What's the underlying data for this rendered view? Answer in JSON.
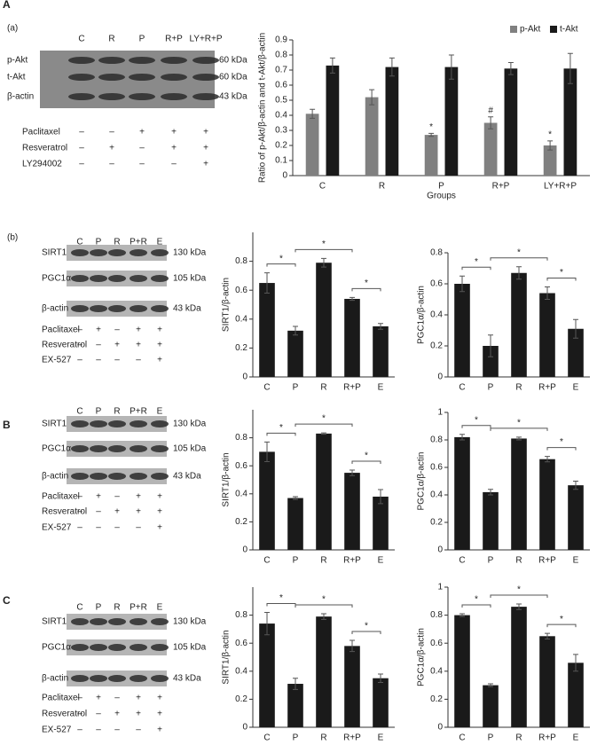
{
  "panel_labels": [
    "A",
    "(a)",
    "(b)",
    "B",
    "C"
  ],
  "blots": [
    {
      "lanes": [
        "C",
        "R",
        "P",
        "R+P",
        "LY+R+P"
      ],
      "rows": [
        {
          "label": "p-Akt",
          "kda": "60 kDa"
        },
        {
          "label": "t-Akt",
          "kda": "60 kDa"
        },
        {
          "label": "β-actin",
          "kda": "43 kDa"
        }
      ],
      "treatments": [
        {
          "name": "Paclitaxel",
          "signs": [
            "–",
            "–",
            "+",
            "+",
            "+"
          ]
        },
        {
          "name": "Resveratrol",
          "signs": [
            "–",
            "+",
            "–",
            "+",
            "+"
          ]
        },
        {
          "name": "LY294002",
          "signs": [
            "–",
            "–",
            "–",
            "–",
            "+"
          ]
        }
      ]
    },
    {
      "lanes": [
        "C",
        "P",
        "R",
        "P+R",
        "E"
      ],
      "rows": [
        {
          "label": "SIRT1",
          "kda": "130 kDa"
        },
        {
          "label": "PGC1α",
          "kda": "105 kDa"
        },
        {
          "label": "β-actin",
          "kda": "43 kDa"
        }
      ],
      "treatments": [
        {
          "name": "Paclitaxel",
          "signs": [
            "–",
            "+",
            "–",
            "+",
            "+"
          ]
        },
        {
          "name": "Resveratrol",
          "signs": [
            "–",
            "–",
            "+",
            "+",
            "+"
          ]
        },
        {
          "name": "EX-527",
          "signs": [
            "–",
            "–",
            "–",
            "–",
            "+"
          ]
        }
      ]
    },
    {
      "lanes": [
        "C",
        "P",
        "R",
        "P+R",
        "E"
      ],
      "rows": [
        {
          "label": "SIRT1",
          "kda": "130 kDa"
        },
        {
          "label": "PGC1α",
          "kda": "105 kDa"
        },
        {
          "label": "β-actin",
          "kda": "43 kDa"
        }
      ],
      "treatments": [
        {
          "name": "Paclitaxel",
          "signs": [
            "–",
            "+",
            "–",
            "+",
            "+"
          ]
        },
        {
          "name": "Resveratrol",
          "signs": [
            "–",
            "–",
            "+",
            "+",
            "+"
          ]
        },
        {
          "name": "EX-527",
          "signs": [
            "–",
            "–",
            "–",
            "–",
            "+"
          ]
        }
      ]
    },
    {
      "lanes": [
        "C",
        "P",
        "R",
        "P+R",
        "E"
      ],
      "rows": [
        {
          "label": "SIRT1",
          "kda": "130 kDa"
        },
        {
          "label": "PGC1α",
          "kda": "105 kDa"
        },
        {
          "label": "β-actin",
          "kda": "43 kDa"
        }
      ],
      "treatments": [
        {
          "name": "Paclitaxel",
          "signs": [
            "–",
            "+",
            "–",
            "+",
            "+"
          ]
        },
        {
          "name": "Resveratrol",
          "signs": [
            "–",
            "–",
            "+",
            "+",
            "+"
          ]
        },
        {
          "name": "EX-527",
          "signs": [
            "–",
            "–",
            "–",
            "–",
            "+"
          ]
        }
      ]
    }
  ],
  "chart_data": [
    {
      "type": "bar",
      "y_label": "Ratio of p-Akt/β-actin and t-Akt/β-actin",
      "x_label": "Groups",
      "categories": [
        "C",
        "R",
        "P",
        "R+P",
        "LY+R+P"
      ],
      "legend": "upper right",
      "series": [
        {
          "name": "p-Akt",
          "color": "#808080",
          "values": [
            0.41,
            0.52,
            0.27,
            0.35,
            0.2
          ],
          "errors": [
            0.03,
            0.05,
            0.01,
            0.04,
            0.03
          ],
          "markers": [
            null,
            null,
            "*",
            "#",
            "*"
          ]
        },
        {
          "name": "t-Akt",
          "color": "#1a1a1a",
          "values": [
            0.73,
            0.72,
            0.72,
            0.71,
            0.71
          ],
          "errors": [
            0.05,
            0.06,
            0.08,
            0.04,
            0.1
          ]
        }
      ],
      "ylim": [
        0,
        0.9
      ],
      "yticks": [
        0,
        0.1,
        0.2,
        0.3,
        0.4,
        0.5,
        0.6,
        0.7,
        0.8,
        0.9
      ]
    },
    {
      "type": "bar",
      "y_label": "SIRT1/β-actin",
      "categories": [
        "C",
        "P",
        "R",
        "R+P",
        "E"
      ],
      "color": "#1a1a1a",
      "values": [
        0.65,
        0.32,
        0.79,
        0.54,
        0.35
      ],
      "errors": [
        0.07,
        0.03,
        0.03,
        0.01,
        0.02
      ],
      "significance": [
        "*",
        "*",
        "*"
      ],
      "ylim": [
        0,
        1
      ],
      "yticks": [
        0,
        0.2,
        0.4,
        0.6,
        0.8
      ]
    },
    {
      "type": "bar",
      "y_label": "PGC1α/β-actin",
      "categories": [
        "C",
        "P",
        "R",
        "R+P",
        "E"
      ],
      "color": "#1a1a1a",
      "values": [
        0.6,
        0.2,
        0.67,
        0.54,
        0.31
      ],
      "errors": [
        0.05,
        0.07,
        0.04,
        0.04,
        0.06
      ],
      "significance": [
        "*",
        "*",
        "*"
      ],
      "ylim": [
        0,
        0.8
      ],
      "yticks": [
        0,
        0.2,
        0.4,
        0.6,
        0.8
      ]
    },
    {
      "type": "bar",
      "y_label": "SIRT1/β-actin",
      "categories": [
        "C",
        "P",
        "R",
        "R+P",
        "E"
      ],
      "color": "#1a1a1a",
      "values": [
        0.7,
        0.37,
        0.83,
        0.55,
        0.38
      ],
      "errors": [
        0.07,
        0.01,
        0.005,
        0.02,
        0.05
      ],
      "significance": [
        "*",
        "*",
        "*"
      ],
      "ylim": [
        0,
        1
      ],
      "yticks": [
        0,
        0.2,
        0.4,
        0.6,
        0.8
      ]
    },
    {
      "type": "bar",
      "y_label": "PGC1α/β-actin",
      "categories": [
        "C",
        "P",
        "R",
        "R+P",
        "E"
      ],
      "color": "#1a1a1a",
      "values": [
        0.82,
        0.42,
        0.81,
        0.66,
        0.47
      ],
      "errors": [
        0.02,
        0.02,
        0.01,
        0.02,
        0.03
      ],
      "significance": [
        "*",
        "*",
        "*"
      ],
      "ylim": [
        0,
        1
      ],
      "yticks": [
        0,
        0.2,
        0.4,
        0.6,
        0.8,
        1
      ]
    },
    {
      "type": "bar",
      "y_label": "SIRT1/β-actin",
      "categories": [
        "C",
        "P",
        "R",
        "R+P",
        "E"
      ],
      "color": "#1a1a1a",
      "values": [
        0.74,
        0.31,
        0.79,
        0.58,
        0.35
      ],
      "errors": [
        0.08,
        0.04,
        0.02,
        0.04,
        0.03
      ],
      "significance": [
        "*",
        "*",
        "*"
      ],
      "ylim": [
        0,
        1
      ],
      "yticks": [
        0,
        0.2,
        0.4,
        0.6,
        0.8
      ]
    },
    {
      "type": "bar",
      "y_label": "PGC1α/β-actin",
      "categories": [
        "C",
        "P",
        "R",
        "R+P",
        "E"
      ],
      "color": "#1a1a1a",
      "values": [
        0.8,
        0.3,
        0.86,
        0.65,
        0.46
      ],
      "errors": [
        0.01,
        0.01,
        0.02,
        0.02,
        0.06
      ],
      "significance": [
        "*",
        "*",
        "*"
      ],
      "ylim": [
        0,
        1
      ],
      "yticks": [
        0,
        0.2,
        0.4,
        0.6,
        0.8,
        1
      ]
    }
  ]
}
